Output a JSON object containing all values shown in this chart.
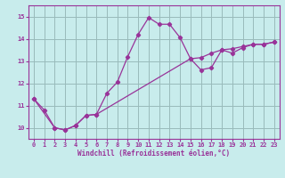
{
  "xlabel": "Windchill (Refroidissement éolien,°C)",
  "bg_color": "#c8ecec",
  "line_color": "#993399",
  "grid_color": "#99bbbb",
  "spine_color": "#993399",
  "xlim": [
    -0.5,
    23.5
  ],
  "ylim": [
    9.5,
    15.5
  ],
  "yticks": [
    10,
    11,
    12,
    13,
    14,
    15
  ],
  "xticks": [
    0,
    1,
    2,
    3,
    4,
    5,
    6,
    7,
    8,
    9,
    10,
    11,
    12,
    13,
    14,
    15,
    16,
    17,
    18,
    19,
    20,
    21,
    22,
    23
  ],
  "series1_x": [
    0,
    1,
    2,
    3,
    4,
    5,
    6,
    7,
    8,
    9,
    10,
    11,
    12,
    13,
    14,
    15,
    16,
    17,
    18,
    19,
    20,
    21,
    22,
    23
  ],
  "series1_y": [
    11.3,
    10.8,
    10.0,
    9.9,
    10.1,
    10.55,
    10.6,
    11.55,
    12.05,
    13.2,
    14.2,
    14.95,
    14.65,
    14.65,
    14.05,
    13.1,
    12.6,
    12.7,
    13.5,
    13.35,
    13.6,
    13.75,
    13.75,
    13.85
  ],
  "series2_x": [
    0,
    2,
    3,
    4,
    5,
    6,
    15,
    16,
    17,
    18,
    19,
    20,
    21,
    22,
    23
  ],
  "series2_y": [
    11.3,
    10.0,
    9.9,
    10.1,
    10.55,
    10.6,
    13.1,
    13.15,
    13.35,
    13.5,
    13.55,
    13.65,
    13.75,
    13.75,
    13.85
  ],
  "xlabel_fontsize": 5.5,
  "tick_fontsize": 5.0,
  "linewidth": 0.9,
  "markersize": 2.2
}
